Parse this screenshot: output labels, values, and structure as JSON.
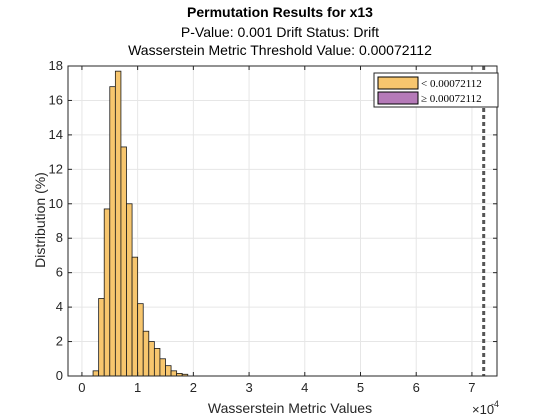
{
  "chart_data": {
    "type": "bar",
    "title": "Permutation Results for x13",
    "subtitle_lines": [
      "P-Value: 0.001 Drift Status: Drift",
      "Wasserstein Metric Threshold Value: 0.00072112"
    ],
    "xlabel": "Wasserstein Metric Values",
    "ylabel": "Distribution (%)",
    "x_exponent_label": "×10",
    "x_exponent_power": "-4",
    "xlim": [
      -0.25,
      7.45
    ],
    "ylim": [
      0,
      18
    ],
    "xticks": [
      0,
      1,
      2,
      3,
      4,
      5,
      6,
      7
    ],
    "yticks": [
      0,
      2,
      4,
      6,
      8,
      10,
      12,
      14,
      16,
      18
    ],
    "grid": true,
    "legend_position": "top-right",
    "bin_width": 0.1,
    "bins": [
      {
        "x0": 0.2,
        "value": 0.3
      },
      {
        "x0": 0.3,
        "value": 4.5
      },
      {
        "x0": 0.4,
        "value": 9.7
      },
      {
        "x0": 0.5,
        "value": 16.8
      },
      {
        "x0": 0.6,
        "value": 17.7
      },
      {
        "x0": 0.7,
        "value": 13.3
      },
      {
        "x0": 0.8,
        "value": 10.0
      },
      {
        "x0": 0.9,
        "value": 6.9
      },
      {
        "x0": 1.0,
        "value": 4.2
      },
      {
        "x0": 1.1,
        "value": 2.6
      },
      {
        "x0": 1.2,
        "value": 2.0
      },
      {
        "x0": 1.3,
        "value": 1.6
      },
      {
        "x0": 1.4,
        "value": 1.0
      },
      {
        "x0": 1.5,
        "value": 0.6
      },
      {
        "x0": 1.6,
        "value": 0.3
      },
      {
        "x0": 1.7,
        "value": 0.15
      },
      {
        "x0": 1.8,
        "value": 0.1
      }
    ],
    "threshold": 7.2112,
    "series": [
      {
        "name": "< 0.00072112",
        "color": "#f7c66e"
      },
      {
        "name": "≥ 0.00072112",
        "color": "#b57ab8"
      }
    ],
    "threshold_line_color": "#555555"
  }
}
